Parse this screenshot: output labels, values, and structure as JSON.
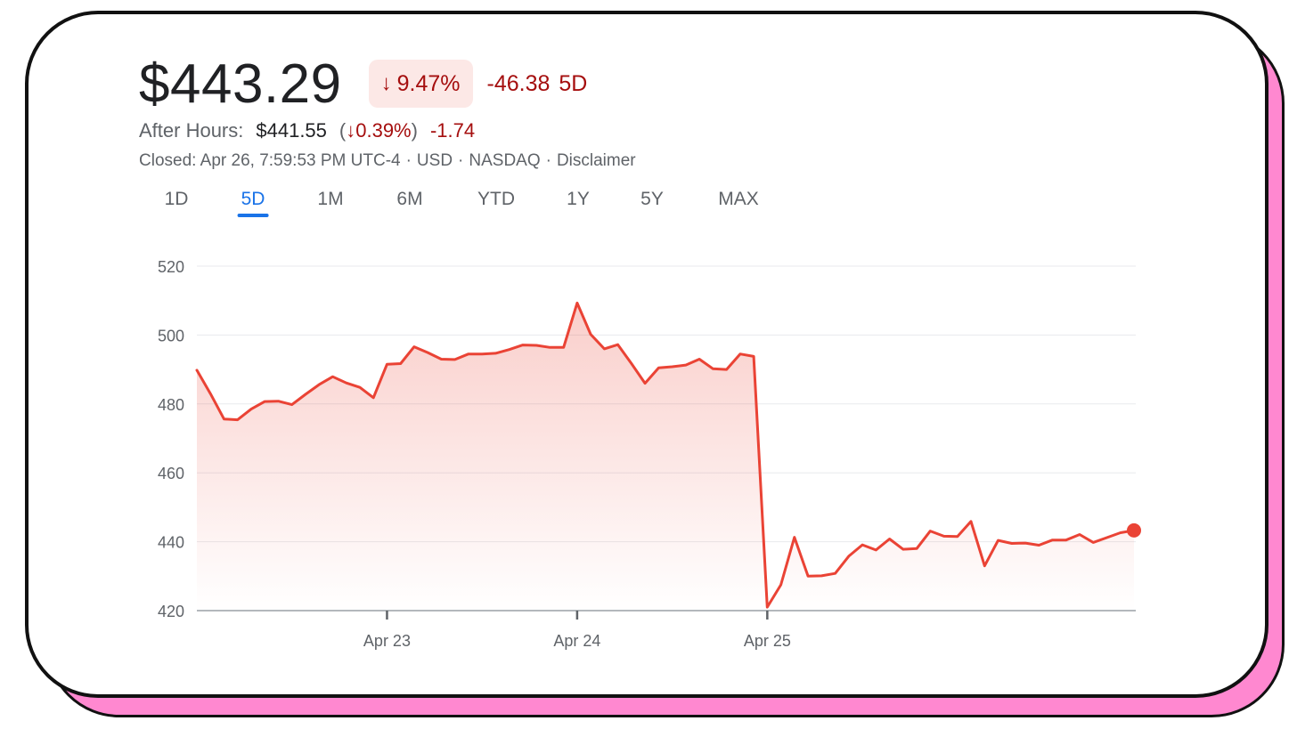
{
  "quote": {
    "price": "$443.29",
    "change_pct": "9.47%",
    "change_direction": "down",
    "change_value": "-46.38",
    "change_period": "5D",
    "after_hours_label": "After Hours:",
    "after_hours_price": "$441.55",
    "after_hours_pct": "0.39%",
    "after_hours_change": "-1.74",
    "closed_text": "Closed: Apr 26, 7:59:53 PM UTC-4",
    "currency": "USD",
    "exchange": "NASDAQ",
    "disclaimer": "Disclaimer"
  },
  "tabs": [
    {
      "label": "1D",
      "active": false
    },
    {
      "label": "5D",
      "active": true
    },
    {
      "label": "1M",
      "active": false
    },
    {
      "label": "6M",
      "active": false
    },
    {
      "label": "YTD",
      "active": false
    },
    {
      "label": "1Y",
      "active": false
    },
    {
      "label": "5Y",
      "active": false
    },
    {
      "label": "MAX",
      "active": false
    }
  ],
  "colors": {
    "line": "#ea4335",
    "fill": "#ea4335",
    "negative_text": "#a50e0e",
    "accent": "#1a73e8",
    "shadow": "#ff88d0"
  },
  "chart_data": {
    "type": "area",
    "title": "",
    "xlabel": "",
    "ylabel": "",
    "ylim": [
      420,
      520
    ],
    "yticks": [
      520,
      500,
      480,
      460,
      440,
      420
    ],
    "x_ticks": [
      {
        "label": "Apr 23",
        "index": 14
      },
      {
        "label": "Apr 24",
        "index": 28
      },
      {
        "label": "Apr 25",
        "index": 42
      }
    ],
    "grid": true,
    "series": [
      {
        "values": [
          489.8,
          483.0,
          475.6,
          475.4,
          478.5,
          480.7,
          480.8,
          479.8,
          482.8,
          485.6,
          487.9,
          486.1,
          484.8,
          481.8,
          491.5,
          491.7,
          496.6,
          494.9,
          493.0,
          492.9,
          494.5,
          494.5,
          494.7,
          495.8,
          497.1,
          497.0,
          496.4,
          496.4,
          509.3,
          500.2,
          496.0,
          497.2,
          491.7,
          486.0,
          490.5,
          490.8,
          491.3,
          493.0,
          490.2,
          490.0,
          494.5,
          493.8,
          421.0,
          427.5,
          441.3,
          430.0,
          430.1,
          430.8,
          435.8,
          439.1,
          437.6,
          440.8,
          437.8,
          438.0,
          443.1,
          441.6,
          441.5,
          445.9,
          433.0,
          440.4,
          439.5,
          439.6,
          439.0,
          440.5,
          440.5,
          442.1,
          439.8,
          441.2,
          442.6,
          443.29
        ]
      }
    ],
    "last_point_marker": true
  }
}
